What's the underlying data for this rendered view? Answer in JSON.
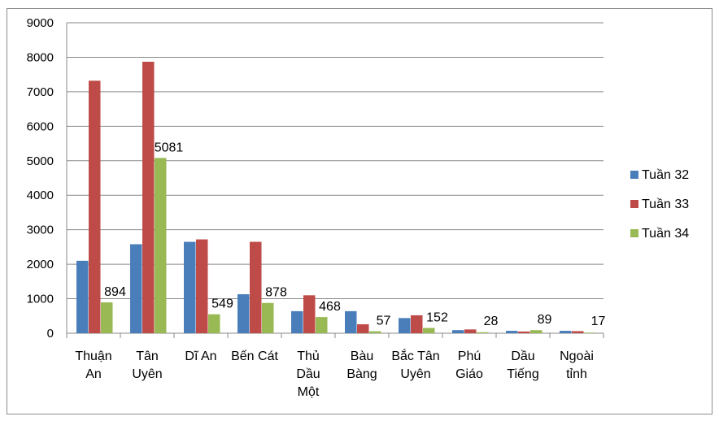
{
  "chart_data": {
    "type": "bar",
    "title": "",
    "xlabel": "",
    "ylabel": "",
    "ylim": [
      0,
      9000
    ],
    "yticks": [
      0,
      1000,
      2000,
      3000,
      4000,
      5000,
      6000,
      7000,
      8000,
      9000
    ],
    "grid": true,
    "legend_position": "right",
    "categories": [
      [
        "Thuận",
        "An"
      ],
      [
        "Tân",
        "Uyên"
      ],
      [
        "Dĩ An"
      ],
      [
        "Bến Cát"
      ],
      [
        "Thủ",
        "Dầu",
        "Một"
      ],
      [
        "Bàu",
        "Bàng"
      ],
      [
        "Bắc Tân",
        "Uyên"
      ],
      [
        "Phú",
        "Giáo"
      ],
      [
        "Dầu",
        "Tiếng"
      ],
      [
        "Ngoài",
        "tỉnh"
      ]
    ],
    "series": [
      {
        "name": "Tuần 32",
        "color": "#4a7ebb",
        "values": [
          2100,
          2580,
          2650,
          1130,
          640,
          640,
          440,
          90,
          70,
          70
        ]
      },
      {
        "name": "Tuần 33",
        "color": "#be4b48",
        "values": [
          7320,
          7870,
          2720,
          2650,
          1100,
          260,
          520,
          110,
          50,
          60
        ]
      },
      {
        "name": "Tuần 34",
        "color": "#98b954",
        "values": [
          894,
          5081,
          549,
          878,
          468,
          57,
          152,
          28,
          89,
          17
        ]
      }
    ],
    "data_labels": [
      {
        "series": 2,
        "values": [
          "894",
          "5081",
          "549",
          "878",
          "468",
          "57",
          "152",
          "28",
          "89",
          "17"
        ]
      }
    ]
  }
}
